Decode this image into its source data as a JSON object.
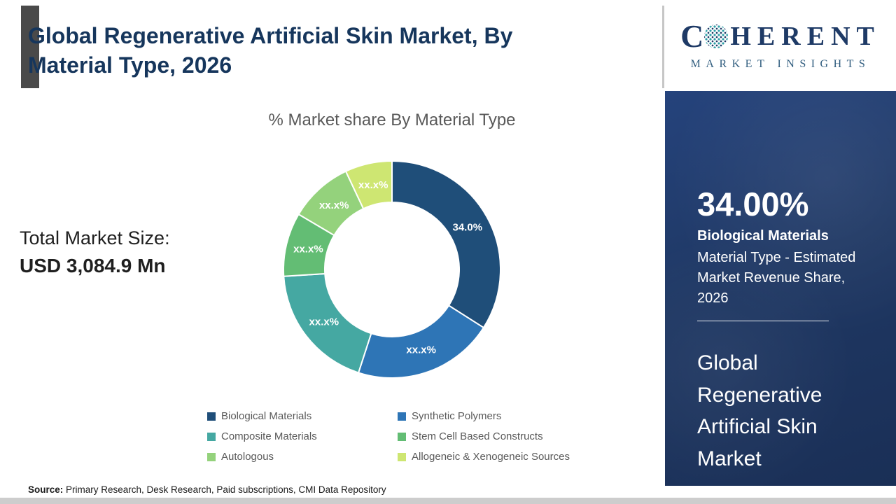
{
  "header": {
    "title": "Global Regenerative Artificial Skin Market, By Material Type, 2026"
  },
  "logo": {
    "word_first_letter": "C",
    "word_rest": "HERENT",
    "subtitle": "MARKET INSIGHTS"
  },
  "left": {
    "total_label": "Total Market Size:",
    "total_value": "USD 3,084.9 Mn"
  },
  "chart_data": {
    "type": "pie",
    "donut": true,
    "title": "% Market share By Material Type",
    "legend_position": "bottom",
    "segments": [
      {
        "label": "Biological Materials",
        "display": "34.0%",
        "value": 34.0,
        "color": "#1F4E79"
      },
      {
        "label": "Synthetic Polymers",
        "display": "xx.x%",
        "value": 21.0,
        "color": "#2E75B6"
      },
      {
        "label": "Composite Materials",
        "display": "xx.x%",
        "value": 19.0,
        "color": "#45A8A2"
      },
      {
        "label": "Stem Cell Based Constructs",
        "display": "xx.x%",
        "value": 9.5,
        "color": "#63BD74"
      },
      {
        "label": "Autologous",
        "display": "xx.x%",
        "value": 9.5,
        "color": "#94D27C"
      },
      {
        "label": "Allogeneic & Xenogeneic Sources",
        "display": "xx.x%",
        "value": 7.0,
        "color": "#CEE672"
      }
    ]
  },
  "panel": {
    "stat_value": "34.00%",
    "stat_label": "Biological Materials",
    "stat_desc": "Material Type - Estimated Market Revenue Share, 2026",
    "market_name": "Global Regenerative Artificial Skin Market"
  },
  "footer": {
    "source_label": "Source:",
    "source_text": " Primary Research, Desk Research, Paid subscriptions, CMI Data Repository"
  },
  "colors": {
    "panel_bg": "#1F3864",
    "title_text": "#16365C",
    "accent_bar": "#4a4a4a",
    "subtitle_text": "#595959"
  }
}
